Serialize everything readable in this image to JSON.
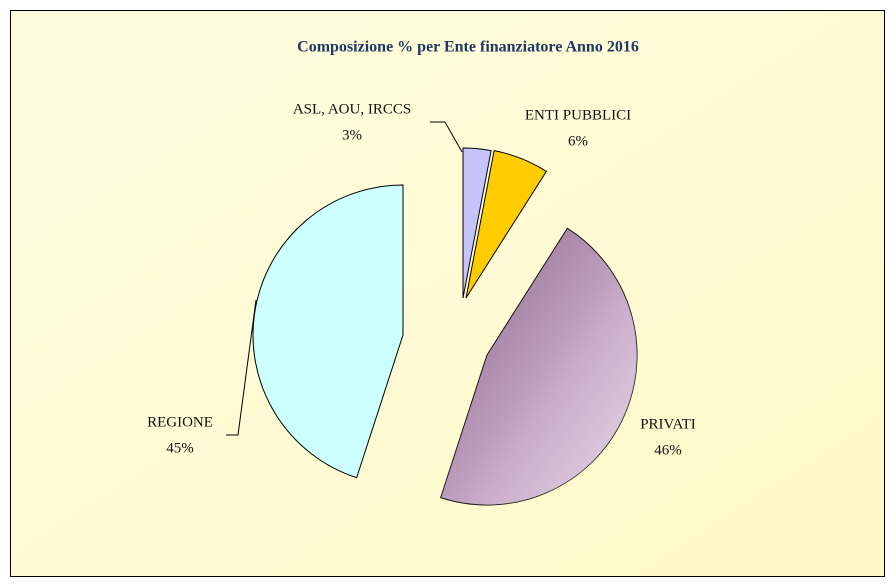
{
  "chart_data": {
    "type": "pie",
    "title": "Composizione % per Ente finanziatore Anno 2016",
    "categories": [
      "ASL, AOU, IRCCS",
      "ENTI PUBBLICI",
      "PRIVATI",
      "REGIONE"
    ],
    "values": [
      3,
      6,
      46,
      45
    ],
    "value_labels": [
      "3%",
      "6%",
      "46%",
      "45%"
    ],
    "colors": [
      "#c4c4f8",
      "#ffcc00",
      "#b488b4",
      "#ccffff"
    ]
  }
}
